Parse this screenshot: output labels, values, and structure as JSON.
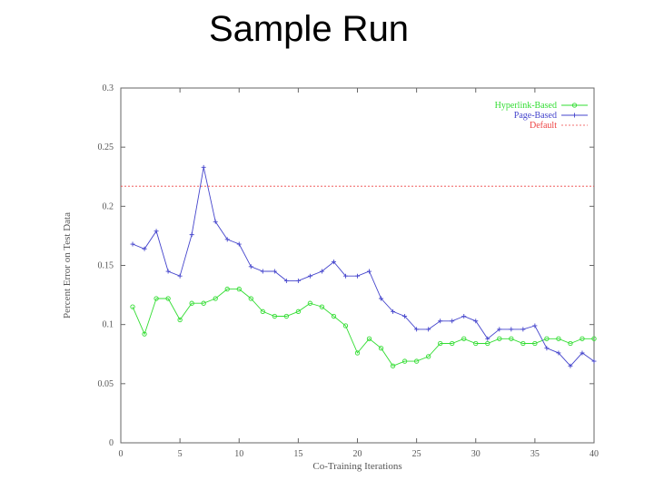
{
  "slide": {
    "title": "Sample Run"
  },
  "chart_data": {
    "type": "line",
    "xlabel": "Co-Training Iterations",
    "ylabel": "Percent Error on Test Data",
    "xlim": [
      0,
      40
    ],
    "ylim": [
      0,
      0.3
    ],
    "x_ticks": [
      0,
      5,
      10,
      15,
      20,
      25,
      30,
      35,
      40
    ],
    "y_ticks": [
      0,
      0.05,
      0.1,
      0.15,
      0.2,
      0.25,
      0.3
    ],
    "grid": false,
    "legend_position": "top-right",
    "series": [
      {
        "name": "Hyperlink-Based",
        "color": "#33dd33",
        "marker": "circle",
        "x": [
          1,
          2,
          3,
          4,
          5,
          6,
          7,
          8,
          9,
          10,
          11,
          12,
          13,
          14,
          15,
          16,
          17,
          18,
          19,
          20,
          21,
          22,
          23,
          24,
          25,
          26,
          27,
          28,
          29,
          30,
          31,
          32,
          33,
          34,
          35,
          36,
          37,
          38,
          39,
          40
        ],
        "values": [
          0.115,
          0.092,
          0.122,
          0.122,
          0.104,
          0.118,
          0.118,
          0.122,
          0.13,
          0.13,
          0.122,
          0.111,
          0.107,
          0.107,
          0.111,
          0.118,
          0.115,
          0.107,
          0.099,
          0.076,
          0.088,
          0.08,
          0.065,
          0.069,
          0.069,
          0.073,
          0.084,
          0.084,
          0.088,
          0.084,
          0.084,
          0.088,
          0.088,
          0.084,
          0.084,
          0.088,
          0.088,
          0.084,
          0.088,
          0.088
        ]
      },
      {
        "name": "Page-Based",
        "color": "#4444cc",
        "marker": "plus",
        "x": [
          1,
          2,
          3,
          4,
          5,
          6,
          7,
          8,
          9,
          10,
          11,
          12,
          13,
          14,
          15,
          16,
          17,
          18,
          19,
          20,
          21,
          22,
          23,
          24,
          25,
          26,
          27,
          28,
          29,
          30,
          31,
          32,
          33,
          34,
          35,
          36,
          37,
          38,
          39,
          40
        ],
        "values": [
          0.168,
          0.164,
          0.179,
          0.145,
          0.141,
          0.176,
          0.233,
          0.187,
          0.172,
          0.168,
          0.149,
          0.145,
          0.145,
          0.137,
          0.137,
          0.141,
          0.145,
          0.153,
          0.141,
          0.141,
          0.145,
          0.122,
          0.111,
          0.107,
          0.096,
          0.096,
          0.103,
          0.103,
          0.107,
          0.103,
          0.088,
          0.096,
          0.096,
          0.096,
          0.099,
          0.08,
          0.076,
          0.065,
          0.076,
          0.069
        ]
      },
      {
        "name": "Default",
        "color": "#ee4444",
        "marker": "none",
        "dashed": true,
        "constant": 0.217
      }
    ]
  }
}
